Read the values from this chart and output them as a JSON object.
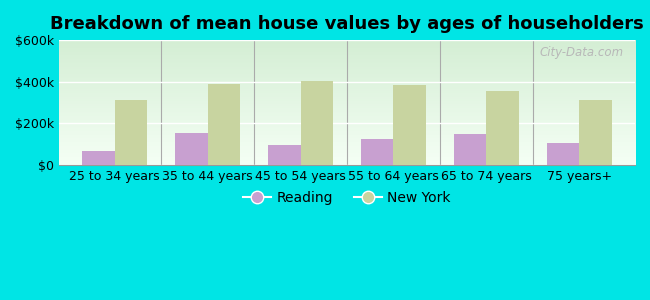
{
  "title": "Breakdown of mean house values by ages of householders",
  "categories": [
    "25 to 34 years",
    "35 to 44 years",
    "45 to 54 years",
    "55 to 64 years",
    "65 to 74 years",
    "75 years+"
  ],
  "reading_values": [
    65000,
    155000,
    95000,
    125000,
    150000,
    105000
  ],
  "newyork_values": [
    310000,
    390000,
    405000,
    385000,
    355000,
    310000
  ],
  "reading_color": "#c8a0d0",
  "newyork_color": "#c8d4a0",
  "background_outer": "#00e5e5",
  "ylim": [
    0,
    600000
  ],
  "yticks": [
    0,
    200000,
    400000,
    600000
  ],
  "ytick_labels": [
    "$0",
    "$200k",
    "$400k",
    "$600k"
  ],
  "legend_reading": "Reading",
  "legend_newyork": "New York",
  "bar_width": 0.35,
  "title_fontsize": 13,
  "tick_fontsize": 9,
  "legend_fontsize": 10,
  "watermark": "City-Data.com",
  "gradient_top": "#d4eed4",
  "gradient_bottom": "#f5fff5"
}
